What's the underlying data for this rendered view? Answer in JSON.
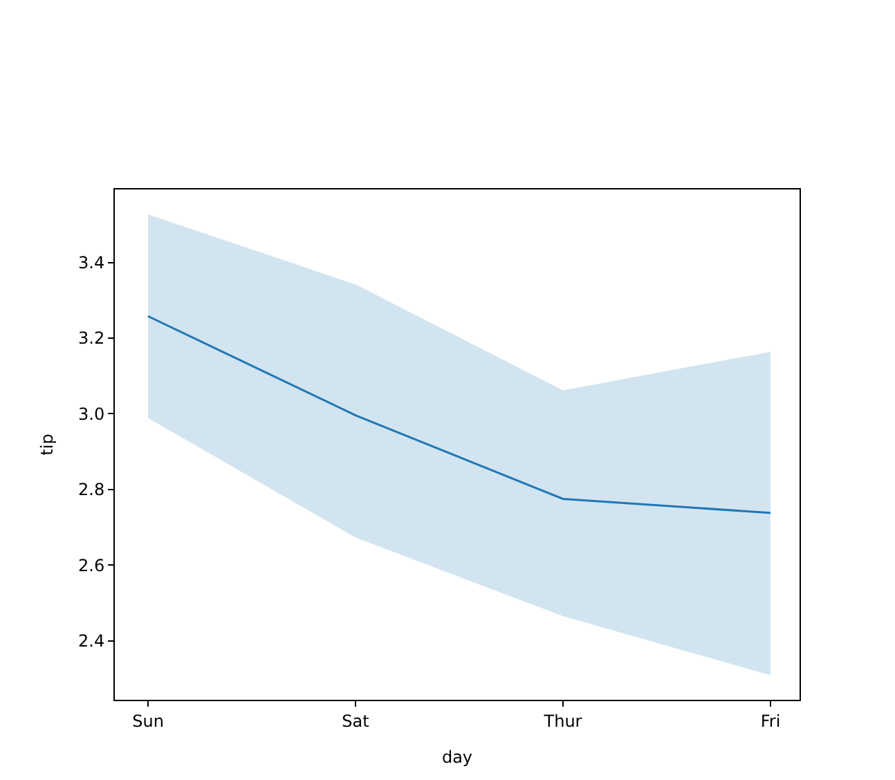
{
  "chart_data": {
    "type": "line",
    "xlabel": "day",
    "ylabel": "tip",
    "categories": [
      "Sun",
      "Sat",
      "Thur",
      "Fri"
    ],
    "series": [
      {
        "color": "#1f77b4",
        "values": [
          3.258,
          2.996,
          2.775,
          2.738
        ],
        "lower": [
          2.989,
          2.673,
          2.465,
          2.309
        ],
        "upper": [
          3.527,
          3.342,
          3.062,
          3.164
        ]
      }
    ],
    "ylim": [
      2.244,
      3.593
    ],
    "yticks": [
      2.4,
      2.6,
      2.8,
      {
        "value": 3.0,
        "label": "3.0"
      },
      3.2,
      3.4
    ],
    "marker": "none",
    "line_style": "solid"
  }
}
